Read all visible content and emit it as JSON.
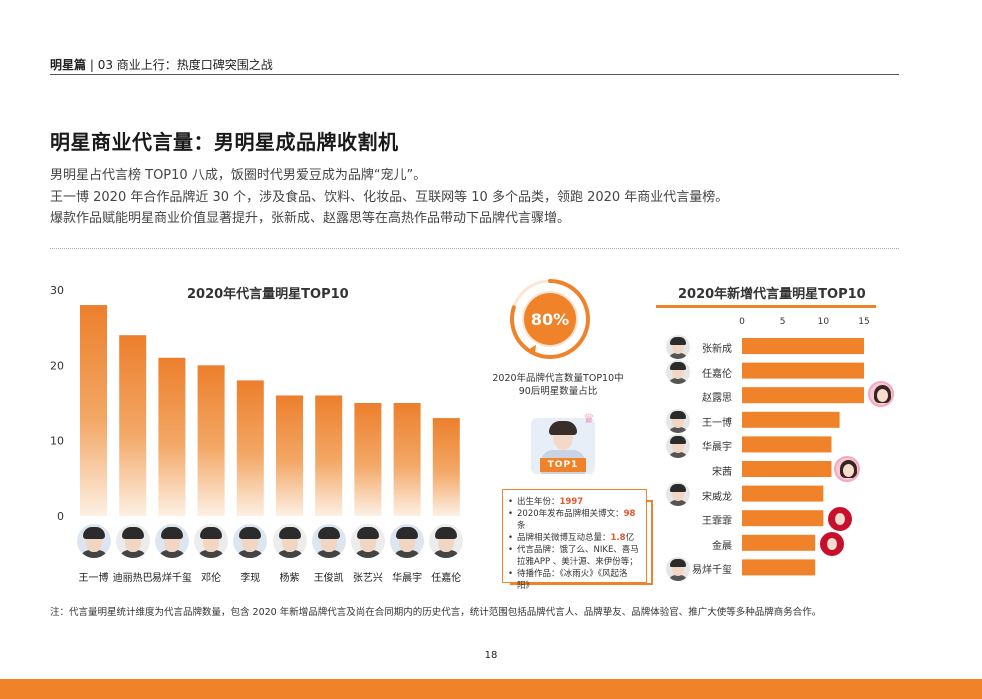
{
  "header": {
    "section": "明星篇",
    "breadcrumb": "| 03  商业上行：热度口碑突围之战"
  },
  "title": "明星商业代言量：男明星成品牌收割机",
  "intro": [
    "男明星占代言榜 TOP10 八成，饭圈时代男爱豆成为品牌“宠儿”。",
    "王一博 2020 年合作品牌近 30 个，涉及食品、饮料、化妆品、互联网等 10 多个品类，领跑 2020 年商业代言量榜。",
    "爆款作品赋能明星商业价值显著提升，张新成、赵露思等在高热作品带动下品牌代言骤增。"
  ],
  "colors": {
    "accent": "#f0822a",
    "highlight": "#e4572e"
  },
  "chart_data": [
    {
      "type": "bar",
      "title": "2020年代言量明星TOP10",
      "categories": [
        "王一博",
        "迪丽热巴",
        "易烊千玺",
        "邓伦",
        "李现",
        "杨紫",
        "王俊凯",
        "张艺兴",
        "华晨宇",
        "任嘉伦"
      ],
      "values": [
        28,
        24,
        21,
        20,
        18,
        16,
        16,
        15,
        15,
        13
      ],
      "ylim": [
        0,
        30
      ],
      "yticks": [
        "0",
        "10",
        "20",
        "30"
      ],
      "xlabel": "",
      "ylabel": "",
      "grid": false
    },
    {
      "type": "bar",
      "orientation": "horizontal",
      "title": "2020年新增代言量明星TOP10",
      "categories": [
        "张新成",
        "任嘉伦",
        "赵露思",
        "王一博",
        "华晨宇",
        "宋茜",
        "宋威龙",
        "王霏霏",
        "金晨",
        "易烊千玺"
      ],
      "values": [
        15,
        15,
        15,
        12,
        11,
        11,
        10,
        10,
        9,
        9
      ],
      "xlim": [
        0,
        15
      ],
      "xticks": [
        "0",
        "5",
        "10",
        "15"
      ],
      "grid": false
    }
  ],
  "ring": {
    "percent_label": "80%",
    "percent_value": 80,
    "caption": [
      "2020年品牌代言数量TOP10中",
      "90后明星数量占比"
    ]
  },
  "top1": {
    "badge": "TOP1",
    "info": {
      "birth_label": "出生年份：",
      "birth_value": "1997",
      "weibo_label": "2020年发布品牌相关博文：",
      "weibo_value": "98",
      "weibo_unit": "条",
      "interact_label": "品牌相关微博互动总量：",
      "interact_value": "1.8",
      "interact_unit": "亿",
      "brands_line1": "代言品牌：饿了么、NIKE、喜马",
      "brands_line2": "拉雅APP 、美汁源、来伊份等；",
      "works": "待播作品：《冰雨火》《风起洛阳》"
    }
  },
  "footnote": "注：代言量明星统计维度为代言品牌数量，包含 2020 年新增品牌代言及尚在合同期内的历史代言，统计范围包括品牌代言人、品牌挚友、品牌体验官、推广大使等多种品牌商务合作。",
  "page_number": "18"
}
